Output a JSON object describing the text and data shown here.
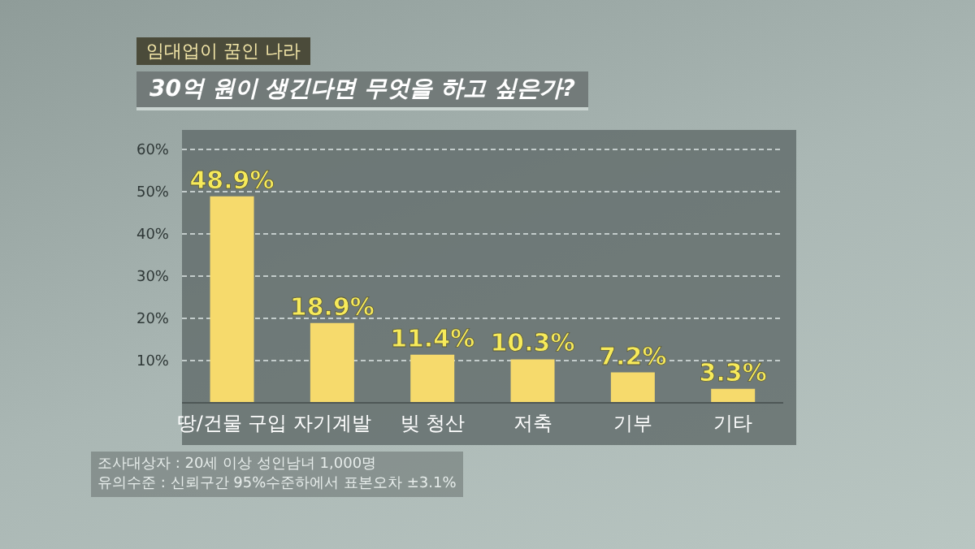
{
  "chart_data": {
    "type": "bar",
    "title": "30억 원이 생긴다면 무엇을 하고 싶은가?",
    "subtitle": "임대업이 꿈인 나라",
    "categories": [
      "땅/건물 구입",
      "자기계발",
      "빚 청산",
      "저축",
      "기부",
      "기타"
    ],
    "values": [
      48.9,
      18.9,
      11.4,
      10.3,
      7.2,
      3.3
    ],
    "value_labels": [
      "48.9%",
      "18.9%",
      "11.4%",
      "10.3%",
      "7.2%",
      "3.3%"
    ],
    "color": "#f6da6c",
    "ylim": [
      0,
      60
    ],
    "yticks": [
      {
        "value": 10,
        "label": "10%"
      },
      {
        "value": 20,
        "label": "20%"
      },
      {
        "value": 30,
        "label": "30%"
      },
      {
        "value": 40,
        "label": "40%"
      },
      {
        "value": 50,
        "label": "50%"
      },
      {
        "value": 60,
        "label": "60%"
      }
    ],
    "grid": "y",
    "annotations": [
      "조사대상자 : 20세 이상 성인남녀 1,000명",
      "유의수준 : 신뢰구간 95%수준하에서 표본오차 ±3.1%"
    ]
  }
}
